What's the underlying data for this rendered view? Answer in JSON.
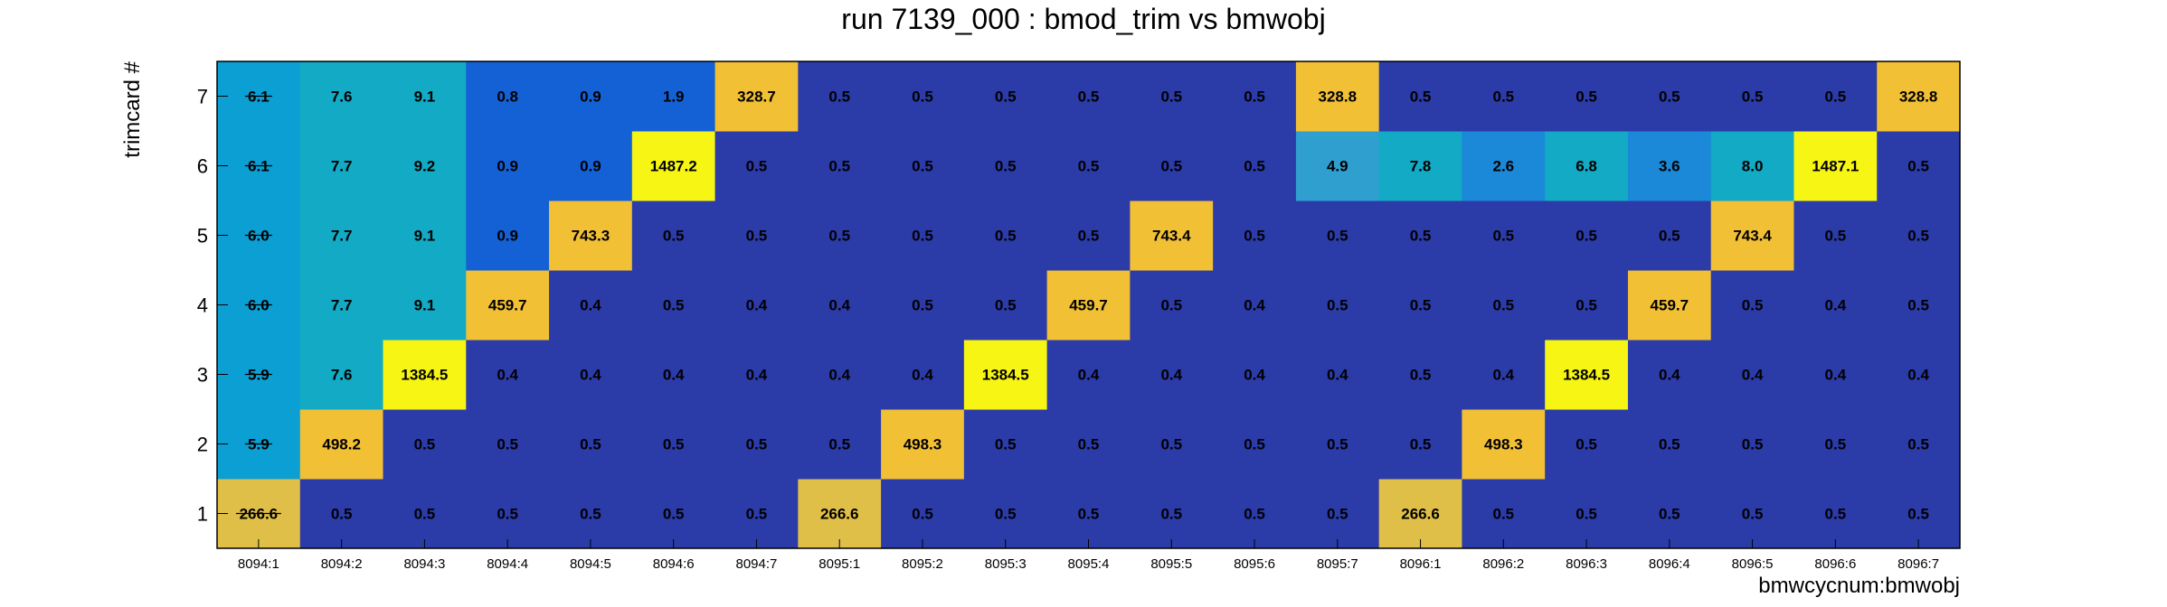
{
  "chart_data": {
    "type": "heatmap",
    "title": "run 7139_000 : bmod_trim vs bmwobj",
    "xlabel": "bmwcycnum:bmwobj",
    "ylabel": "trimcard #",
    "x_categories": [
      "8094:1",
      "8094:2",
      "8094:3",
      "8094:4",
      "8094:5",
      "8094:6",
      "8094:7",
      "8095:1",
      "8095:2",
      "8095:3",
      "8095:4",
      "8095:5",
      "8095:6",
      "8095:7",
      "8096:1",
      "8096:2",
      "8096:3",
      "8096:4",
      "8096:5",
      "8096:6",
      "8096:7"
    ],
    "y_categories": [
      "1",
      "2",
      "3",
      "4",
      "5",
      "6",
      "7"
    ],
    "values": [
      [
        "266.6",
        "0.5",
        "0.5",
        "0.5",
        "0.5",
        "0.5",
        "0.5",
        "266.6",
        "0.5",
        "0.5",
        "0.5",
        "0.5",
        "0.5",
        "0.5",
        "266.6",
        "0.5",
        "0.5",
        "0.5",
        "0.5",
        "0.5",
        "0.5"
      ],
      [
        "5.9",
        "498.2",
        "0.5",
        "0.5",
        "0.5",
        "0.5",
        "0.5",
        "0.5",
        "498.3",
        "0.5",
        "0.5",
        "0.5",
        "0.5",
        "0.5",
        "0.5",
        "498.3",
        "0.5",
        "0.5",
        "0.5",
        "0.5",
        "0.5"
      ],
      [
        "5.9",
        "7.6",
        "1384.5",
        "0.4",
        "0.4",
        "0.4",
        "0.4",
        "0.4",
        "0.4",
        "1384.5",
        "0.4",
        "0.4",
        "0.4",
        "0.4",
        "0.5",
        "0.4",
        "1384.5",
        "0.4",
        "0.4",
        "0.4",
        "0.4"
      ],
      [
        "6.0",
        "7.7",
        "9.1",
        "459.7",
        "0.4",
        "0.5",
        "0.4",
        "0.4",
        "0.5",
        "0.5",
        "459.7",
        "0.5",
        "0.4",
        "0.5",
        "0.5",
        "0.5",
        "0.5",
        "459.7",
        "0.5",
        "0.4",
        "0.5"
      ],
      [
        "6.0",
        "7.7",
        "9.1",
        "0.9",
        "743.3",
        "0.5",
        "0.5",
        "0.5",
        "0.5",
        "0.5",
        "0.5",
        "743.4",
        "0.5",
        "0.5",
        "0.5",
        "0.5",
        "0.5",
        "0.5",
        "743.4",
        "0.5",
        "0.5"
      ],
      [
        "6.1",
        "7.7",
        "9.2",
        "0.9",
        "0.9",
        "1487.2",
        "0.5",
        "0.5",
        "0.5",
        "0.5",
        "0.5",
        "0.5",
        "0.5",
        "4.9",
        "7.8",
        "2.6",
        "6.8",
        "3.6",
        "8.0",
        "1487.1",
        "0.5"
      ],
      [
        "6.1",
        "7.6",
        "9.1",
        "0.8",
        "0.9",
        "1.9",
        "328.7",
        "0.5",
        "0.5",
        "0.5",
        "0.5",
        "0.5",
        "0.5",
        "328.8",
        "0.5",
        "0.5",
        "0.5",
        "0.5",
        "0.5",
        "0.5",
        "328.8"
      ]
    ],
    "struck_column": "8094:1",
    "palette": {
      "low": "#2b3ba8",
      "blue": "#1461d6",
      "cyan": "#0b9fd3",
      "teal": "#12aac4",
      "mid_teal": "#2f9fcf",
      "steel": "#1b88d8",
      "gold": "#f2c035",
      "dark_gold": "#e0bf48",
      "yellow": "#f7f513"
    },
    "grid": false,
    "legend": "none"
  }
}
